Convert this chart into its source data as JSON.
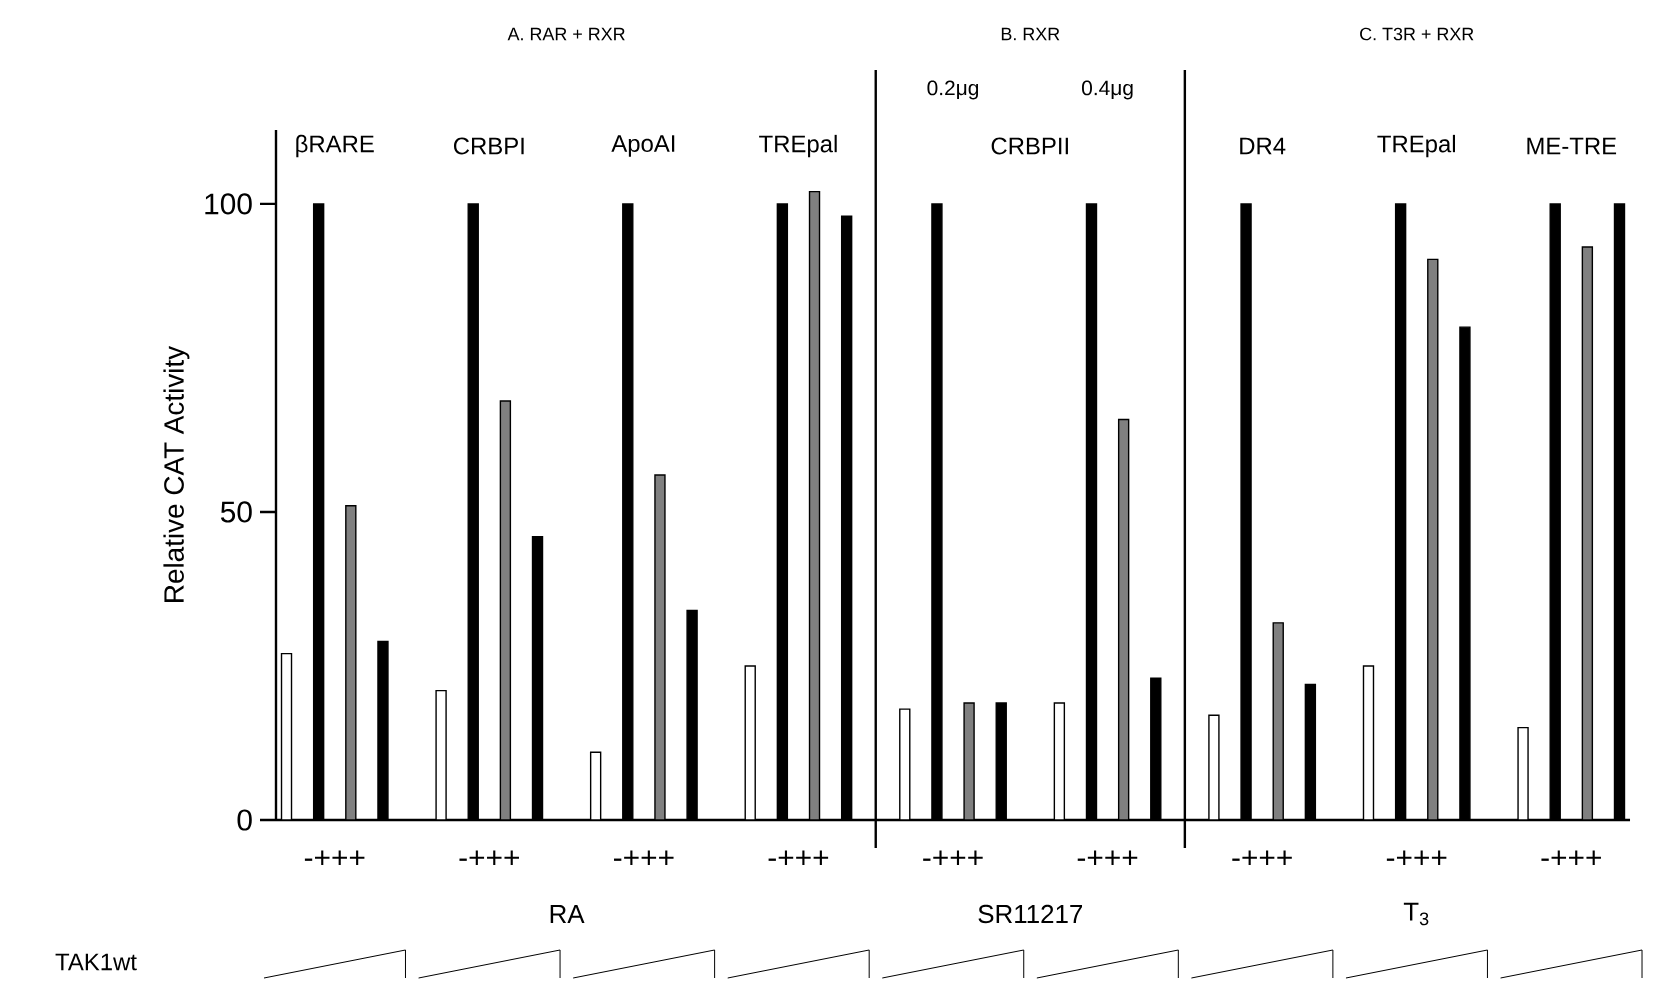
{
  "chart_data": {
    "type": "bar",
    "ylabel": "Relative CAT Activity",
    "categories": [
      "-+++",
      "-+++",
      "-+++",
      "-+++",
      "-+++",
      "-+++",
      "-+++",
      "-+++",
      "-+++"
    ],
    "series": [
      {
        "color": "#ffffff",
        "values": [
          27,
          21,
          11,
          25,
          18,
          19,
          17,
          25,
          15
        ]
      },
      {
        "color": "#000000",
        "values": [
          100,
          100,
          100,
          100,
          100,
          100,
          100,
          100,
          100
        ]
      },
      {
        "color": "#808080",
        "values": [
          51,
          68,
          56,
          102,
          19,
          65,
          32,
          91,
          93
        ]
      },
      {
        "color": "#000000",
        "values": [
          29,
          46,
          34,
          98,
          19,
          23,
          22,
          80,
          100
        ]
      }
    ],
    "ylim": [
      0,
      112
    ],
    "yticks": [
      0,
      50,
      100
    ],
    "annotations": [
      "A. RAR + RXR",
      "B. RXR",
      "C. T3R + RXR",
      "0.2μg",
      "0.4μg",
      "βRARE",
      "CRBPI",
      "ApoAI",
      "TREpal",
      "CRBPII",
      "DR4",
      "TREpal",
      "ME-TRE",
      "RA",
      "SR11217",
      "T$_{3}$",
      "TAK1wt"
    ]
  }
}
